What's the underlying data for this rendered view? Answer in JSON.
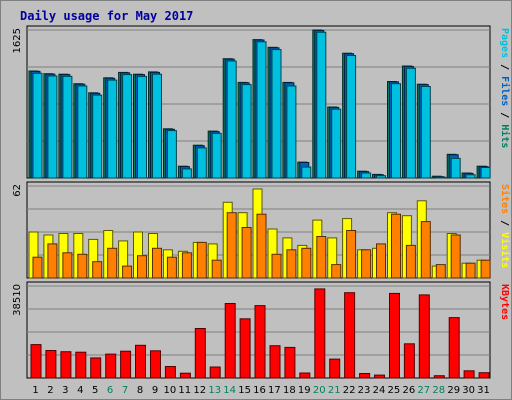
{
  "chart_data": {
    "title": "Daily usage for May 2017",
    "type": "bar",
    "days": [
      "1",
      "2",
      "3",
      "4",
      "5",
      "6",
      "7",
      "8",
      "9",
      "10",
      "11",
      "12",
      "13",
      "14",
      "15",
      "16",
      "17",
      "18",
      "19",
      "20",
      "21",
      "22",
      "23",
      "24",
      "25",
      "26",
      "27",
      "28",
      "29",
      "30",
      "31"
    ],
    "weekend_days": [
      "6",
      "7",
      "13",
      "14",
      "20",
      "21",
      "27",
      "28"
    ],
    "colors": {
      "title": "#0000a0",
      "weekday_label": "#000000",
      "weekend_label": "#008060",
      "pages": "#00c0e0",
      "files": "#0060c0",
      "hits": "#008060",
      "visits": "#ffff00",
      "sites": "#ff8000",
      "kbytes": "#ff0000"
    },
    "panels": [
      {
        "name": "hits-files-pages",
        "ymax_label": "1625",
        "ymax": 1625,
        "legend": [
          {
            "text": "Pages",
            "color": "#00c0e0"
          },
          {
            "text": " / ",
            "color": "#000000"
          },
          {
            "text": "Files",
            "color": "#0060c0"
          },
          {
            "text": " / ",
            "color": "#000000"
          },
          {
            "text": "Hits",
            "color": "#008060"
          }
        ],
        "series": [
          {
            "name": "Hits",
            "color": "#008060",
            "values": [
              1175,
              1145,
              1140,
              1035,
              935,
              1100,
              1160,
              1140,
              1165,
              540,
              130,
              360,
              515,
              1310,
              1050,
              1520,
              1435,
              1050,
              175,
              1625,
              780,
              1370,
              75,
              40,
              1060,
              1230,
              1030,
              20,
              260,
              55,
              130
            ]
          },
          {
            "name": "Files",
            "color": "#0060c0",
            "values": [
              1170,
              1140,
              1135,
              1030,
              930,
              1095,
              1155,
              1135,
              1160,
              535,
              125,
              355,
              510,
              1305,
              1045,
              1515,
              1430,
              1045,
              170,
              1620,
              775,
              1365,
              70,
              35,
              1055,
              1225,
              1025,
              15,
              255,
              50,
              125
            ]
          },
          {
            "name": "Pages",
            "color": "#00c0e0",
            "values": [
              1150,
              1120,
              1115,
              1010,
              910,
              1075,
              1135,
              1115,
              1140,
              520,
              100,
              330,
              490,
              1285,
              1025,
              1495,
              1410,
              1010,
              120,
              1600,
              755,
              1345,
              55,
              25,
              1035,
              1205,
              1005,
              10,
              215,
              35,
              115
            ]
          }
        ]
      },
      {
        "name": "visits-sites",
        "ymax_label": "62",
        "ymax": 62,
        "legend": [
          {
            "text": "Sites",
            "color": "#ff8000"
          },
          {
            "text": " / ",
            "color": "#000000"
          },
          {
            "text": "Visits",
            "color": "#ffff00"
          }
        ],
        "series": [
          {
            "name": "Visits",
            "color": "#ffff00",
            "values": [
              31,
              29,
              30,
              30,
              26,
              32,
              25,
              31,
              30,
              19,
              18,
              24,
              23,
              51,
              44,
              60,
              33,
              27,
              22,
              39,
              27,
              40,
              19,
              20,
              44,
              42,
              52,
              8,
              30,
              10,
              12
            ]
          },
          {
            "name": "Sites",
            "color": "#ff8000",
            "values": [
              14,
              23,
              17,
              16,
              11,
              20,
              8,
              15,
              20,
              14,
              17,
              24,
              12,
              44,
              34,
              43,
              16,
              19,
              20,
              28,
              9,
              32,
              19,
              23,
              43,
              22,
              38,
              9,
              29,
              10,
              12
            ]
          }
        ]
      },
      {
        "name": "kbytes",
        "ymax_label": "38510",
        "ymax": 38510,
        "legend": [
          {
            "text": "KBytes",
            "color": "#ff0000"
          }
        ],
        "series": [
          {
            "name": "KBytes",
            "color": "#ff0000",
            "values": [
              14000,
              11500,
              11000,
              10800,
              8400,
              10000,
              11200,
              13700,
              11400,
              4800,
              2000,
              20700,
              4600,
              31200,
              24800,
              30300,
              13500,
              12800,
              2100,
              37300,
              7900,
              35700,
              1900,
              1200,
              35400,
              14300,
              34800,
              950,
              25300,
              3000,
              2200
            ]
          }
        ]
      }
    ]
  }
}
